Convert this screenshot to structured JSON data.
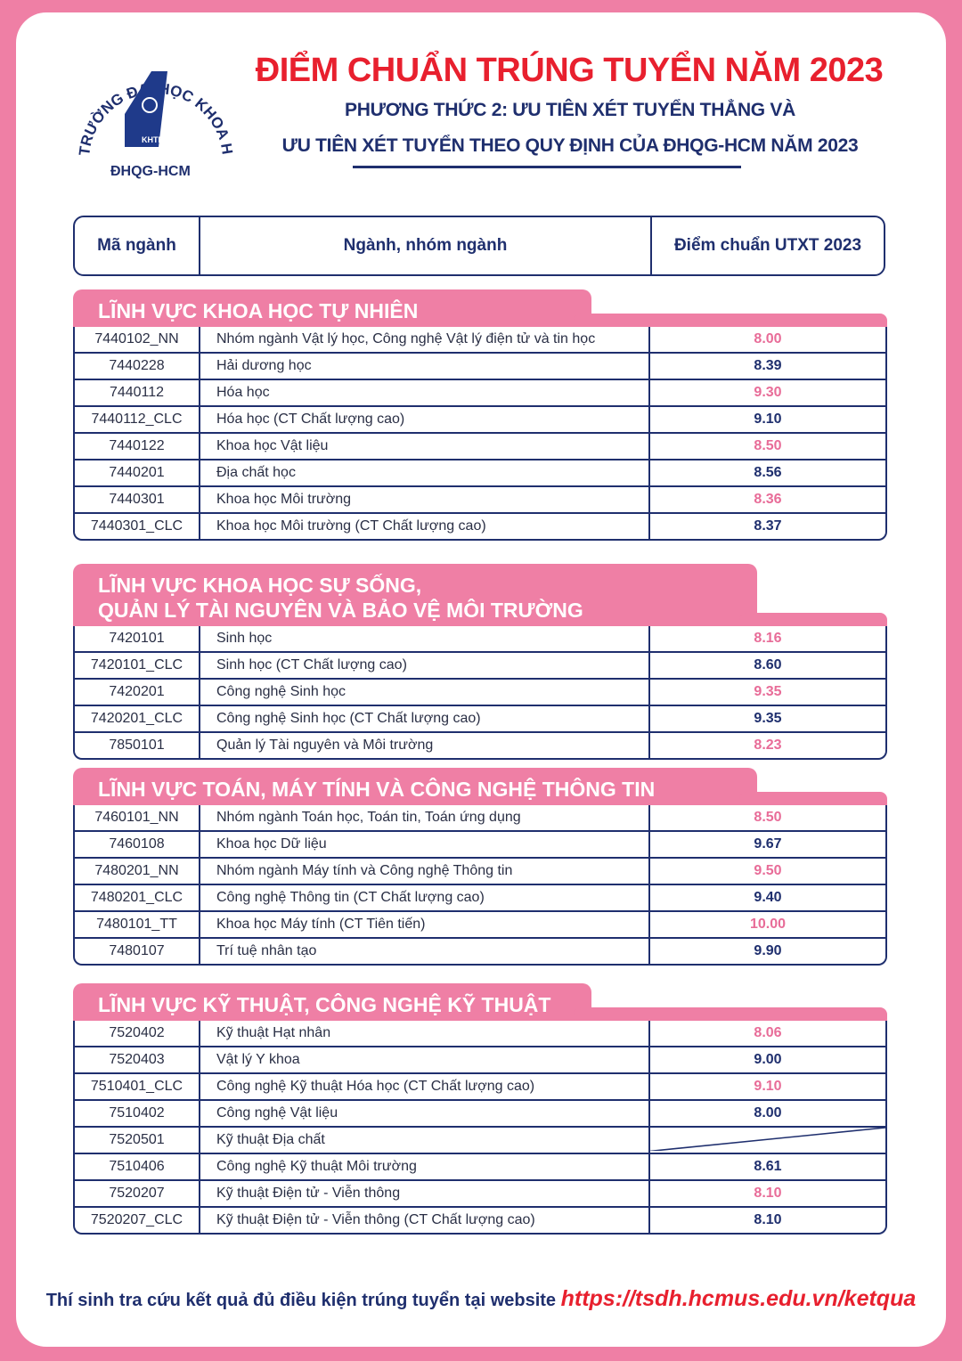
{
  "logo": {
    "ring_text": "TRƯỜNG ĐẠI HỌC KHOA HỌC TỰ NHIÊN",
    "badge": "KHTN",
    "bottom": "ĐHQG-HCM"
  },
  "header": {
    "title": "ĐIỂM CHUẨN TRÚNG TUYỂN NĂM 2023",
    "subtitle_1": "PHƯƠNG THỨC 2: ƯU TIÊN XÉT TUYỂN THẲNG VÀ",
    "subtitle_2": "ƯU TIÊN XÉT TUYỂN THEO QUY ĐỊNH CỦA ĐHQG-HCM NĂM 2023"
  },
  "table_header": {
    "code": "Mã ngành",
    "name": "Ngành, nhóm ngành",
    "score": "Điểm chuẩn UTXT 2023"
  },
  "colors": {
    "accent_pink": "#ef7fa5",
    "navy": "#1f2f6e",
    "title_red": "#e8202e",
    "score_pink": "#e86c98"
  },
  "sections": [
    {
      "title": "LĨNH VỰC KHOA HỌC TỰ NHIÊN",
      "rows": [
        {
          "code": "7440102_NN",
          "name": "Nhóm ngành Vật lý học, Công nghệ Vật lý điện tử và tin học",
          "score": "8.00"
        },
        {
          "code": "7440228",
          "name": "Hải dương học",
          "score": "8.39"
        },
        {
          "code": "7440112",
          "name": "Hóa học",
          "score": "9.30"
        },
        {
          "code": "7440112_CLC",
          "name": "Hóa học (CT Chất lượng cao)",
          "score": "9.10"
        },
        {
          "code": "7440122",
          "name": "Khoa học Vật liệu",
          "score": "8.50"
        },
        {
          "code": "7440201",
          "name": "Địa chất học",
          "score": "8.56"
        },
        {
          "code": "7440301",
          "name": "Khoa học Môi trường",
          "score": "8.36"
        },
        {
          "code": "7440301_CLC",
          "name": "Khoa học Môi trường (CT Chất lượng cao)",
          "score": "8.37"
        }
      ]
    },
    {
      "title": "LĨNH VỰC KHOA HỌC SỰ SỐNG,",
      "title_2": "QUẢN LÝ TÀI NGUYÊN VÀ BẢO VỆ MÔI TRƯỜNG",
      "rows": [
        {
          "code": "7420101",
          "name": "Sinh học",
          "score": "8.16"
        },
        {
          "code": "7420101_CLC",
          "name": "Sinh học (CT Chất lượng cao)",
          "score": "8.60"
        },
        {
          "code": "7420201",
          "name": "Công nghệ Sinh học",
          "score": "9.35"
        },
        {
          "code": "7420201_CLC",
          "name": "Công nghệ Sinh học (CT Chất lượng cao)",
          "score": "9.35"
        },
        {
          "code": "7850101",
          "name": "Quản lý Tài nguyên và Môi trường",
          "score": "8.23"
        }
      ]
    },
    {
      "title": "LĨNH VỰC TOÁN, MÁY TÍNH VÀ CÔNG NGHỆ THÔNG TIN",
      "rows": [
        {
          "code": "7460101_NN",
          "name": "Nhóm ngành Toán học, Toán tin, Toán ứng dụng",
          "score": "8.50"
        },
        {
          "code": "7460108",
          "name": "Khoa học Dữ liệu",
          "score": "9.67"
        },
        {
          "code": "7480201_NN",
          "name": "Nhóm ngành Máy tính và Công nghệ Thông tin",
          "score": "9.50"
        },
        {
          "code": "7480201_CLC",
          "name": "Công nghệ Thông tin (CT Chất lượng cao)",
          "score": "9.40"
        },
        {
          "code": "7480101_TT",
          "name": "Khoa học Máy tính (CT Tiên tiến)",
          "score": "10.00"
        },
        {
          "code": "7480107",
          "name": "Trí tuệ nhân tạo",
          "score": "9.90"
        }
      ]
    },
    {
      "title": "LĨNH VỰC KỸ THUẬT, CÔNG NGHỆ KỸ THUẬT",
      "rows": [
        {
          "code": "7520402",
          "name": "Kỹ thuật Hạt nhân",
          "score": "8.06"
        },
        {
          "code": "7520403",
          "name": "Vật lý Y khoa",
          "score": "9.00"
        },
        {
          "code": "7510401_CLC",
          "name": "Công nghệ Kỹ thuật Hóa học (CT Chất lượng cao)",
          "score": "9.10"
        },
        {
          "code": "7510402",
          "name": "Công nghệ Vật liệu",
          "score": "8.00"
        },
        {
          "code": "7520501",
          "name": "Kỹ thuật Địa chất",
          "score": null
        },
        {
          "code": "7510406",
          "name": "Công nghệ Kỹ thuật Môi trường",
          "score": "8.61"
        },
        {
          "code": "7520207",
          "name": "Kỹ thuật Điện tử - Viễn thông",
          "score": "8.10"
        },
        {
          "code": "7520207_CLC",
          "name": "Kỹ thuật Điện tử - Viễn thông (CT Chất lượng cao)",
          "score": "8.10"
        }
      ]
    }
  ],
  "footer": {
    "text": "Thí sinh tra cứu kết quả đủ điều kiện trúng tuyển tại website ",
    "url": "https://tsdh.hcmus.edu.vn/ketqua"
  }
}
